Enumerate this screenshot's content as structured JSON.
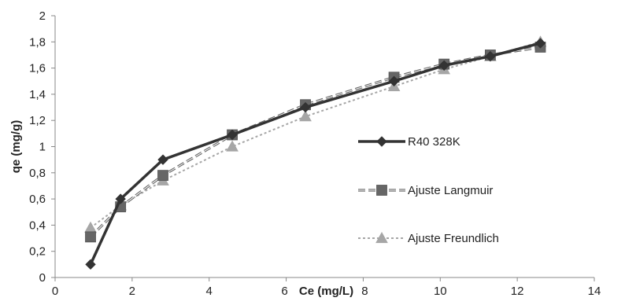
{
  "chart_data": {
    "type": "line",
    "xlabel": "Ce (mg/L)",
    "ylabel": "qe (mg/g)",
    "xlim": [
      0,
      14
    ],
    "ylim": [
      0,
      2
    ],
    "x_ticks": [
      0,
      2,
      4,
      6,
      8,
      10,
      12,
      14
    ],
    "x_tick_labels": [
      "0",
      "2",
      "4",
      "6",
      "8",
      "10",
      "12",
      "14"
    ],
    "y_ticks": [
      0,
      0.2,
      0.4,
      0.6,
      0.8,
      1,
      1.2,
      1.4,
      1.6,
      1.8,
      2
    ],
    "y_tick_labels": [
      "0",
      "0,2",
      "0,4",
      "0,6",
      "0,8",
      "1",
      "1,2",
      "1,4",
      "1,6",
      "1,8",
      "2"
    ],
    "grid": false,
    "legend_position": "right",
    "series": [
      {
        "name": "R40 328K",
        "style": "solid",
        "marker": "diamond",
        "color": "#333333",
        "x": [
          0.92,
          1.7,
          2.8,
          4.6,
          6.5,
          8.8,
          10.1,
          11.3,
          12.6
        ],
        "y": [
          0.1,
          0.6,
          0.9,
          1.09,
          1.3,
          1.5,
          1.62,
          1.69,
          1.79
        ]
      },
      {
        "name": "Ajuste Langmuir",
        "style": "dashed",
        "marker": "square",
        "color": "#666666",
        "x": [
          0.92,
          1.7,
          2.8,
          4.6,
          6.5,
          8.8,
          10.1,
          11.3,
          12.6
        ],
        "y": [
          0.31,
          0.54,
          0.78,
          1.09,
          1.32,
          1.53,
          1.63,
          1.7,
          1.76
        ]
      },
      {
        "name": "Ajuste Freundlich",
        "style": "dotted",
        "marker": "triangle",
        "color": "#a6a6a6",
        "x": [
          0.92,
          1.7,
          2.8,
          4.6,
          6.5,
          8.8,
          10.1,
          11.3,
          12.6
        ],
        "y": [
          0.38,
          0.55,
          0.74,
          1.0,
          1.23,
          1.46,
          1.59,
          1.69,
          1.8
        ]
      }
    ]
  }
}
